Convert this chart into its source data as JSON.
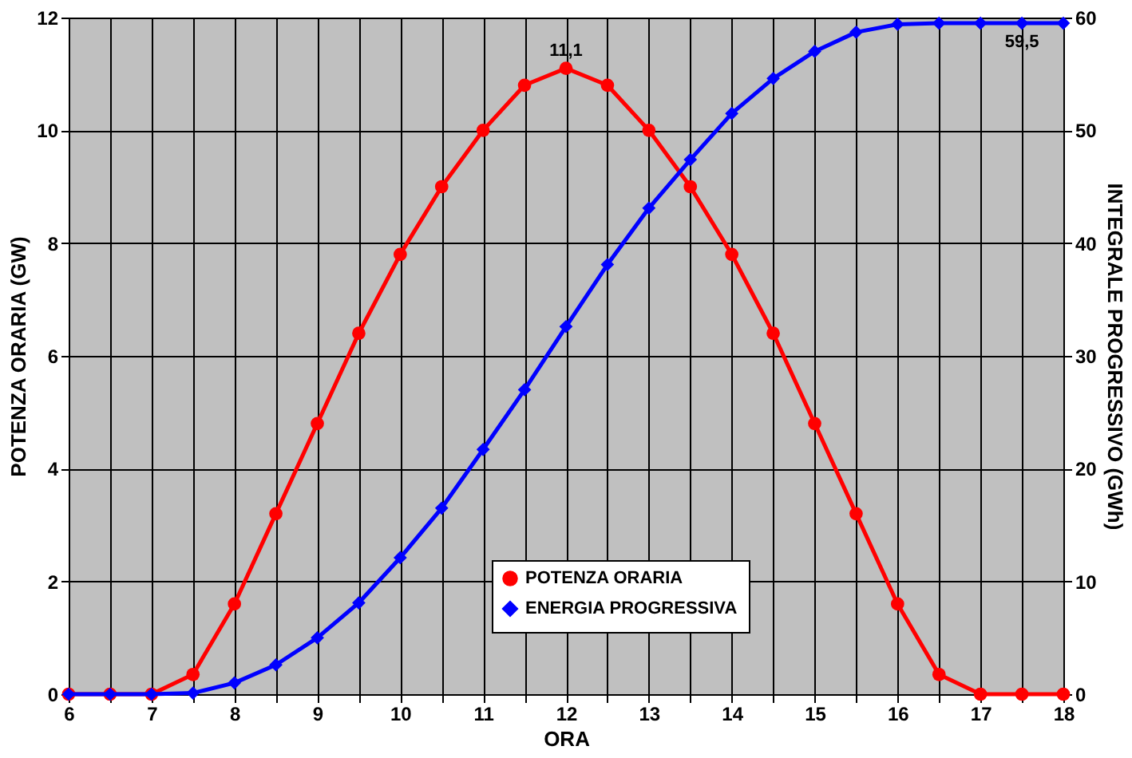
{
  "chart_data": {
    "type": "line",
    "xlabel": "ORA",
    "ylabel": "POTENZA ORARIA (GW)",
    "y2label": "INTEGRALE PROGRESSIVO (GWh)",
    "x": [
      6,
      6.5,
      7,
      7.5,
      8,
      8.5,
      9,
      9.5,
      10,
      10.5,
      11,
      11.5,
      12,
      12.5,
      13,
      13.5,
      14,
      14.5,
      15,
      15.5,
      16,
      16.5,
      17,
      17.5,
      18
    ],
    "series": [
      {
        "name": "POTENZA ORARIA",
        "color": "#ff0000",
        "marker": "circle",
        "values": [
          0,
          0,
          0,
          0.35,
          1.6,
          3.2,
          4.8,
          6.4,
          7.8,
          9.0,
          10.0,
          10.8,
          11.1,
          10.8,
          10.0,
          9.0,
          7.8,
          6.4,
          4.8,
          3.2,
          1.6,
          0.35,
          0,
          0,
          0
        ],
        "value_labels": [
          null,
          null,
          null,
          null,
          null,
          null,
          null,
          null,
          null,
          null,
          null,
          null,
          "11,1",
          null,
          null,
          null,
          null,
          null,
          null,
          null,
          null,
          null,
          null,
          null,
          null
        ]
      },
      {
        "name": "ENERGIA PROGRESSIVA",
        "color": "#0000ff",
        "marker": "diamond",
        "axis": "y2",
        "values": [
          0,
          0,
          0,
          0.1,
          1.0,
          2.6,
          5.0,
          8.1,
          12.1,
          16.5,
          21.7,
          27.0,
          32.6,
          38.1,
          43.1,
          47.4,
          51.5,
          54.6,
          57.0,
          58.7,
          59.4,
          59.5,
          59.5,
          59.5,
          59.5
        ],
        "value_labels": [
          null,
          null,
          null,
          null,
          null,
          null,
          null,
          null,
          null,
          null,
          null,
          null,
          null,
          null,
          null,
          null,
          null,
          null,
          null,
          null,
          null,
          null,
          null,
          "59,5",
          null
        ]
      }
    ],
    "xlim": [
      6,
      18
    ],
    "xticks": [
      6,
      {
        "value": 6.5,
        "label": null
      },
      7,
      {
        "value": 7.5,
        "label": null
      },
      8,
      {
        "value": 8.5,
        "label": null
      },
      9,
      {
        "value": 9.5,
        "label": null
      },
      10,
      {
        "value": 10.5,
        "label": null
      },
      11,
      {
        "value": 11.5,
        "label": null
      },
      12,
      {
        "value": 12.5,
        "label": null
      },
      13,
      {
        "value": 13.5,
        "label": null
      },
      14,
      {
        "value": 14.5,
        "label": null
      },
      15,
      {
        "value": 15.5,
        "label": null
      },
      16,
      {
        "value": 16.5,
        "label": null
      },
      17,
      {
        "value": 17.5,
        "label": null
      },
      18
    ],
    "ylim": [
      0,
      12
    ],
    "yticks": [
      0,
      2,
      4,
      6,
      8,
      10,
      12
    ],
    "y2lim": [
      0,
      60
    ],
    "y2ticks": [
      0,
      10,
      20,
      30,
      40,
      50,
      60
    ],
    "grid": true,
    "legend": "bottom",
    "line_style": "solid"
  }
}
